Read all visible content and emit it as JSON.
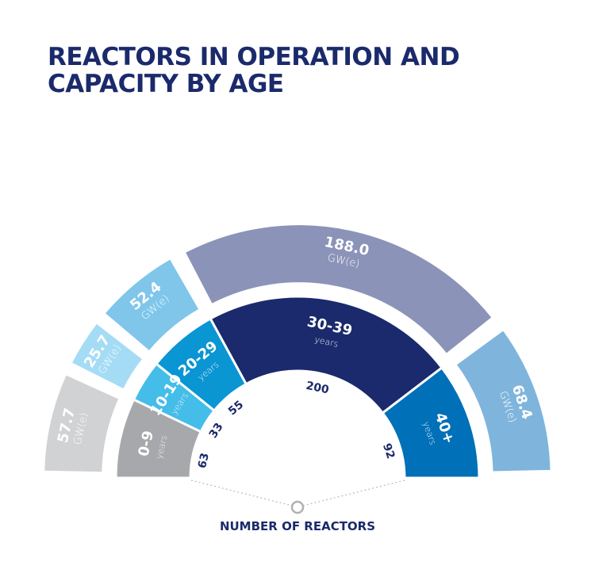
{
  "chart_data": {
    "type": "pie",
    "variant": "semi-donut, two rings",
    "title": "REACTORS IN OPERATION AND CAPACITY BY AGE",
    "xlabel": "NUMBER OF REACTORS",
    "unit_label": "GW(e)",
    "years_label": "years",
    "categories": [
      "0-9",
      "10-19",
      "20-29",
      "30-39",
      "40+"
    ],
    "series": [
      {
        "name": "Number of reactors",
        "values": [
          63,
          33,
          55,
          200,
          92
        ]
      },
      {
        "name": "Capacity GW(e)",
        "values": [
          57.7,
          25.7,
          52.4,
          188.0,
          68.4
        ]
      }
    ],
    "inner_colors": [
      "#a7a8ab",
      "#44bde9",
      "#0a95d3",
      "#1a2a6c",
      "#0070b8"
    ],
    "outer_colors": [
      "#d1d2d4",
      "#a5dcf5",
      "#7fc6ea",
      "#8b93b8",
      "#7fb5dc"
    ]
  }
}
